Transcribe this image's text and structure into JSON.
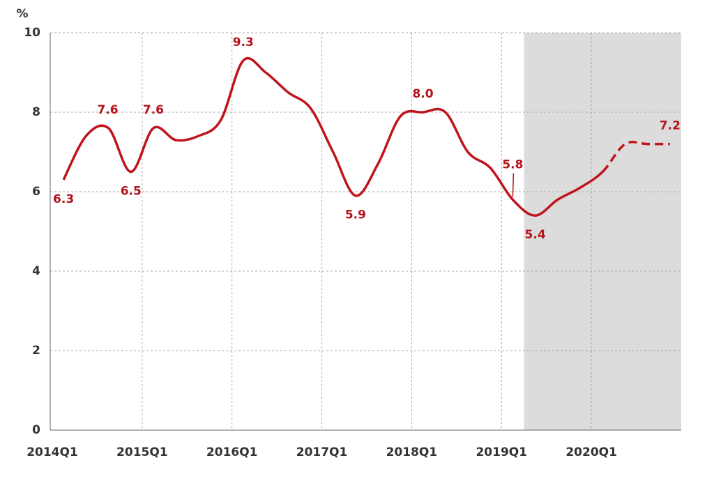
{
  "chart_data": {
    "type": "line",
    "y_unit": "%",
    "categories": [
      "2014Q1",
      null,
      null,
      null,
      "2015Q1",
      null,
      null,
      null,
      "2016Q1",
      null,
      null,
      null,
      "2017Q1",
      null,
      null,
      null,
      "2018Q1",
      null,
      null,
      null,
      "2019Q1",
      null,
      null,
      null,
      "2020Q1",
      null,
      null,
      null
    ],
    "values": [
      6.3,
      7.4,
      7.6,
      6.5,
      7.6,
      7.3,
      7.4,
      7.8,
      9.3,
      9.0,
      8.5,
      8.1,
      7.0,
      5.9,
      6.7,
      7.9,
      8.0,
      8.0,
      7.0,
      6.6,
      5.8,
      5.4,
      5.8,
      6.1,
      6.5,
      7.2,
      7.2,
      7.2
    ],
    "value_labels": [
      "6.3",
      null,
      "7.6",
      "6.5",
      "7.6",
      null,
      null,
      null,
      "9.3",
      null,
      null,
      null,
      null,
      "5.9",
      null,
      null,
      "8.0",
      null,
      null,
      null,
      "5.8",
      "5.4",
      null,
      null,
      null,
      null,
      null,
      "7.2"
    ],
    "color": "#c0141c",
    "dashed_from": 24,
    "shaded_from": 21,
    "shade_color": "#dcdcdc",
    "ylim": [
      0,
      10
    ],
    "yticks": [
      0,
      2,
      4,
      6,
      8,
      10
    ],
    "grid": true
  }
}
